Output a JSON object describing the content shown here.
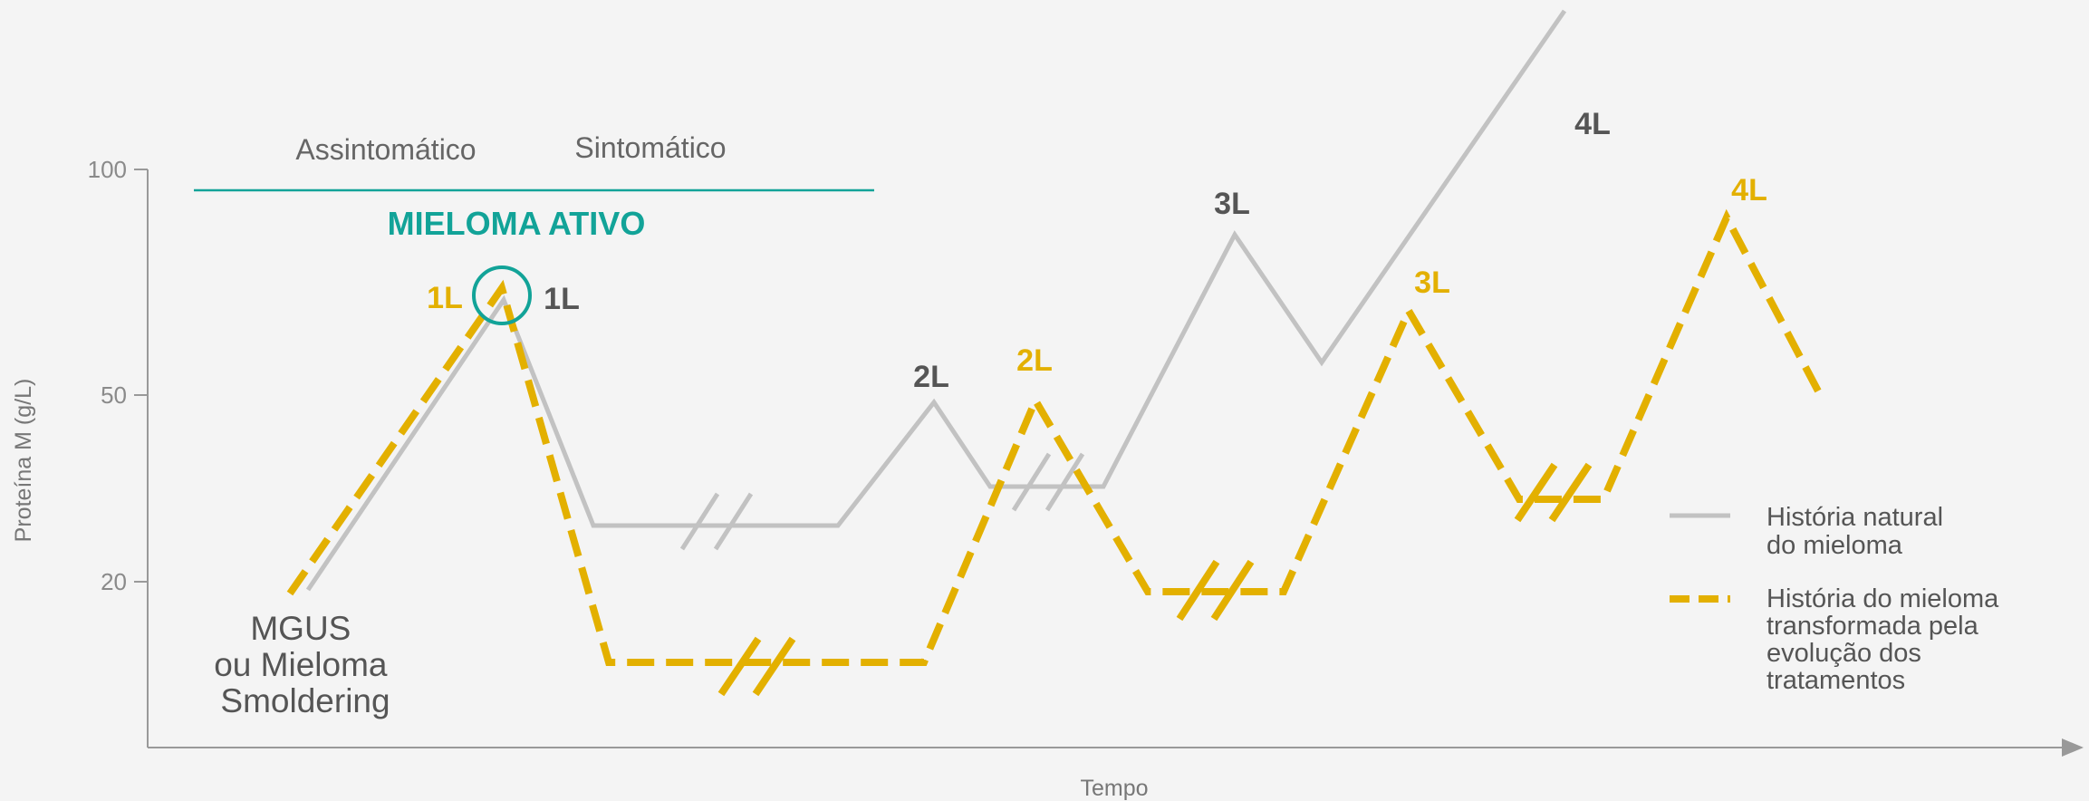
{
  "chart_data": {
    "type": "line",
    "title": "",
    "xlabel": "Tempo",
    "ylabel": "Proteína M (g/L)",
    "yticks": [
      20,
      50,
      100
    ],
    "grid": false,
    "legend_position": "right",
    "colors": {
      "natural": "#c2c2c2",
      "treated": "#e3b000",
      "accent": "#12a398"
    },
    "phase_labels": [
      "Assintomático",
      "Sintomático"
    ],
    "active_label": "MIELOMA ATIVO",
    "start_label_lines": [
      "MGUS",
      "ou Mieloma",
      "Smoldering"
    ],
    "series": [
      {
        "name": "História natural do mieloma",
        "style": "solid",
        "values": [
          [
            2.0,
            19
          ],
          [
            4.0,
            66
          ],
          [
            5.0,
            33
          ],
          [
            7.5,
            33
          ],
          [
            8.5,
            48
          ],
          [
            9.1,
            37
          ],
          [
            10.0,
            37
          ],
          [
            11.4,
            78
          ],
          [
            12.4,
            56
          ],
          [
            15.1,
            129
          ]
        ],
        "labels": [
          {
            "text": "1L",
            "point": [
              4.0,
              66
            ]
          },
          {
            "text": "2L",
            "point": [
              8.5,
              48
            ]
          },
          {
            "text": "3L",
            "point": [
              11.4,
              78
            ]
          },
          {
            "text": "4L",
            "point": [
              15.4,
              85
            ]
          }
        ]
      },
      {
        "name": "História do mieloma transformada pela evolução dos tratamentos",
        "style": "dashed",
        "values": [
          [
            1.8,
            19
          ],
          [
            3.8,
            66
          ],
          [
            4.7,
            12
          ],
          [
            8.7,
            12
          ],
          [
            9.5,
            48
          ],
          [
            10.3,
            21
          ],
          [
            11.8,
            21
          ],
          [
            12.9,
            64
          ],
          [
            13.5,
            33
          ],
          [
            14.7,
            33
          ],
          [
            15.5,
            82
          ],
          [
            16.6,
            47
          ]
        ],
        "labels": [
          {
            "text": "1L",
            "point": [
              3.8,
              66
            ]
          },
          {
            "text": "2L",
            "point": [
              9.5,
              48
            ]
          },
          {
            "text": "3L",
            "point": [
              12.9,
              64
            ]
          },
          {
            "text": "4L",
            "point": [
              15.5,
              82
            ]
          }
        ]
      }
    ],
    "legend": [
      {
        "lines": [
          "História natural",
          "do mieloma"
        ],
        "style": "solid"
      },
      {
        "lines": [
          "História do mieloma",
          "transformada pela",
          "evolução dos",
          "tratamentos"
        ],
        "style": "dashed"
      }
    ]
  }
}
